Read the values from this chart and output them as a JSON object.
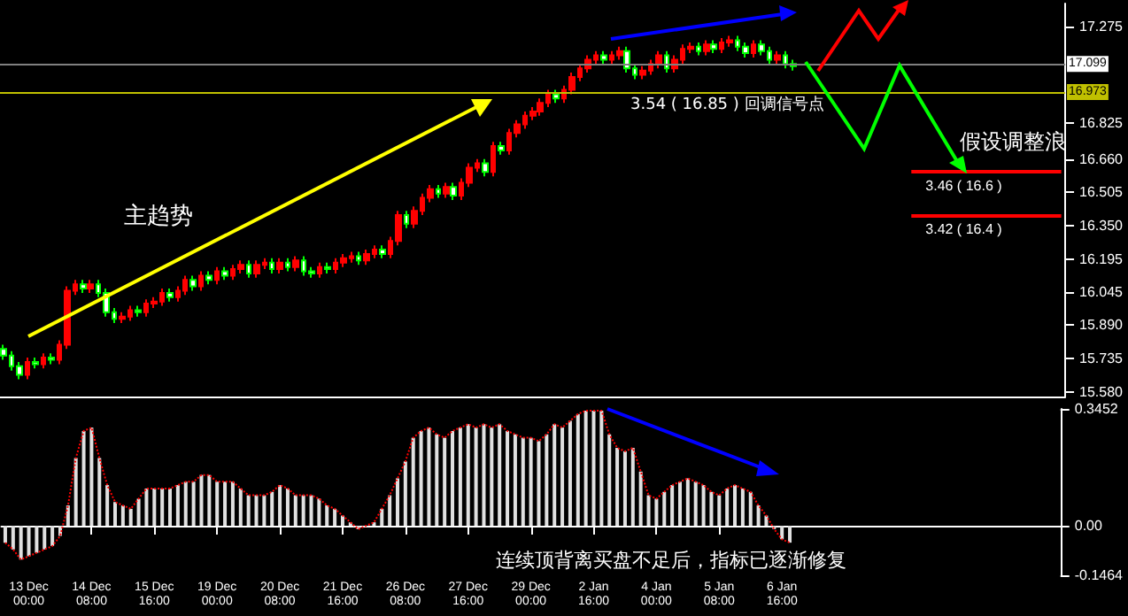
{
  "chart_data": [
    {
      "type": "candlestick",
      "tick_labels": "y",
      "categories": [
        null,
        null,
        null,
        null,
        null,
        null,
        null,
        null,
        null,
        null,
        null,
        null,
        null,
        null,
        null,
        null,
        null,
        null,
        null,
        null,
        null,
        null,
        null,
        null,
        null,
        null,
        null,
        null,
        null,
        null,
        null,
        null,
        null,
        null,
        null,
        null,
        null,
        null,
        null,
        null,
        null,
        null,
        null,
        null,
        null,
        null,
        null,
        null,
        null,
        null,
        null,
        null,
        null,
        null,
        null,
        null,
        null,
        null,
        null,
        null,
        null,
        null,
        null,
        null,
        null,
        null,
        null,
        null,
        null,
        null,
        null,
        null,
        null,
        null,
        null,
        null,
        null,
        null,
        null,
        null,
        null,
        null,
        null,
        null,
        null,
        null,
        null,
        null,
        null,
        null,
        null,
        null,
        null,
        null,
        null,
        null,
        null,
        null,
        null,
        null,
        null,
        null,
        null,
        null,
        null,
        null,
        null,
        null,
        null,
        null,
        null,
        null,
        null,
        null,
        null,
        null,
        null,
        null,
        null,
        null,
        null,
        null,
        null,
        null,
        null,
        null,
        null,
        null,
        null,
        null,
        null,
        null,
        null,
        null,
        null
      ],
      "ohlc": [
        [
          15.78,
          15.8,
          15.73,
          15.75
        ],
        [
          15.75,
          15.77,
          15.68,
          15.7
        ],
        [
          15.7,
          15.72,
          15.64,
          15.66
        ],
        [
          15.66,
          15.74,
          15.64,
          15.72
        ],
        [
          15.72,
          15.74,
          15.69,
          15.71
        ],
        [
          15.71,
          15.76,
          15.69,
          15.74
        ],
        [
          15.74,
          15.76,
          15.71,
          15.73
        ],
        [
          15.73,
          15.82,
          15.71,
          15.8
        ],
        [
          15.8,
          16.07,
          15.78,
          16.05
        ],
        [
          16.05,
          16.1,
          16.03,
          16.08
        ],
        [
          16.08,
          16.1,
          16.04,
          16.06
        ],
        [
          16.06,
          16.1,
          16.04,
          16.08
        ],
        [
          16.08,
          16.1,
          16.02,
          16.04
        ],
        [
          16.04,
          16.06,
          15.93,
          15.95
        ],
        [
          15.95,
          15.97,
          15.9,
          15.92
        ],
        [
          15.92,
          15.95,
          15.9,
          15.93
        ],
        [
          15.93,
          15.98,
          15.91,
          15.96
        ],
        [
          15.96,
          15.98,
          15.93,
          15.95
        ],
        [
          15.95,
          16.01,
          15.93,
          15.99
        ],
        [
          15.99,
          16.02,
          15.97,
          16.0
        ],
        [
          16.0,
          16.06,
          15.98,
          16.04
        ],
        [
          16.04,
          16.06,
          16.0,
          16.02
        ],
        [
          16.02,
          16.07,
          16.0,
          16.05
        ],
        [
          16.05,
          16.12,
          16.03,
          16.1
        ],
        [
          16.1,
          16.12,
          16.05,
          16.07
        ],
        [
          16.07,
          16.14,
          16.05,
          16.12
        ],
        [
          16.12,
          16.14,
          16.08,
          16.1
        ],
        [
          16.1,
          16.16,
          16.08,
          16.14
        ],
        [
          16.14,
          16.16,
          16.1,
          16.12
        ],
        [
          16.12,
          16.17,
          16.1,
          16.15
        ],
        [
          16.15,
          16.19,
          16.13,
          16.17
        ],
        [
          16.17,
          16.19,
          16.11,
          16.13
        ],
        [
          16.13,
          16.19,
          16.11,
          16.17
        ],
        [
          16.17,
          16.2,
          16.15,
          16.18
        ],
        [
          16.18,
          16.2,
          16.13,
          16.15
        ],
        [
          16.15,
          16.2,
          16.13,
          16.18
        ],
        [
          16.18,
          16.2,
          16.14,
          16.16
        ],
        [
          16.16,
          16.21,
          16.14,
          16.19
        ],
        [
          16.19,
          16.21,
          16.12,
          16.14
        ],
        [
          16.14,
          16.16,
          16.11,
          16.13
        ],
        [
          16.13,
          16.18,
          16.11,
          16.16
        ],
        [
          16.16,
          16.18,
          16.13,
          16.15
        ],
        [
          16.15,
          16.2,
          16.13,
          16.18
        ],
        [
          16.18,
          16.22,
          16.16,
          16.2
        ],
        [
          16.2,
          16.23,
          16.18,
          16.21
        ],
        [
          16.21,
          16.23,
          16.17,
          16.19
        ],
        [
          16.19,
          16.24,
          16.17,
          16.22
        ],
        [
          16.22,
          16.26,
          16.2,
          16.24
        ],
        [
          16.24,
          16.26,
          16.2,
          16.22
        ],
        [
          16.22,
          16.3,
          16.2,
          16.28
        ],
        [
          16.28,
          16.42,
          16.26,
          16.4
        ],
        [
          16.4,
          16.42,
          16.34,
          16.36
        ],
        [
          16.36,
          16.44,
          16.34,
          16.42
        ],
        [
          16.42,
          16.5,
          16.4,
          16.48
        ],
        [
          16.48,
          16.54,
          16.46,
          16.52
        ],
        [
          16.52,
          16.54,
          16.48,
          16.5
        ],
        [
          16.5,
          16.55,
          16.48,
          16.53
        ],
        [
          16.53,
          16.55,
          16.47,
          16.49
        ],
        [
          16.49,
          16.57,
          16.47,
          16.55
        ],
        [
          16.55,
          16.64,
          16.53,
          16.62
        ],
        [
          16.62,
          16.66,
          16.6,
          16.64
        ],
        [
          16.64,
          16.66,
          16.58,
          16.6
        ],
        [
          16.6,
          16.74,
          16.58,
          16.72
        ],
        [
          16.72,
          16.74,
          16.68,
          16.7
        ],
        [
          16.7,
          16.8,
          16.68,
          16.78
        ],
        [
          16.78,
          16.84,
          16.76,
          16.82
        ],
        [
          16.82,
          16.88,
          16.8,
          16.86
        ],
        [
          16.86,
          16.9,
          16.84,
          16.88
        ],
        [
          16.88,
          16.94,
          16.86,
          16.92
        ],
        [
          16.92,
          16.98,
          16.9,
          16.96
        ],
        [
          16.96,
          16.98,
          16.92,
          16.94
        ],
        [
          16.94,
          17.0,
          16.92,
          16.98
        ],
        [
          16.98,
          17.06,
          16.96,
          17.04
        ],
        [
          17.04,
          17.1,
          17.02,
          17.08
        ],
        [
          17.08,
          17.14,
          17.06,
          17.12
        ],
        [
          17.12,
          17.16,
          17.1,
          17.14
        ],
        [
          17.14,
          17.16,
          17.1,
          17.12
        ],
        [
          17.12,
          17.16,
          17.1,
          17.14
        ],
        [
          17.14,
          17.18,
          17.12,
          17.16
        ],
        [
          17.16,
          17.18,
          17.06,
          17.08
        ],
        [
          17.08,
          17.1,
          17.03,
          17.05
        ],
        [
          17.05,
          17.09,
          17.03,
          17.07
        ],
        [
          17.07,
          17.12,
          17.05,
          17.1
        ],
        [
          17.1,
          17.16,
          17.08,
          17.14
        ],
        [
          17.14,
          17.16,
          17.06,
          17.08
        ],
        [
          17.08,
          17.14,
          17.06,
          17.12
        ],
        [
          17.12,
          17.19,
          17.1,
          17.17
        ],
        [
          17.17,
          17.2,
          17.15,
          17.18
        ],
        [
          17.18,
          17.2,
          17.14,
          17.16
        ],
        [
          17.16,
          17.21,
          17.14,
          17.19
        ],
        [
          17.19,
          17.21,
          17.15,
          17.17
        ],
        [
          17.17,
          17.22,
          17.15,
          17.2
        ],
        [
          17.2,
          17.23,
          17.18,
          17.21
        ],
        [
          17.21,
          17.23,
          17.16,
          17.18
        ],
        [
          17.18,
          17.2,
          17.13,
          17.15
        ],
        [
          17.15,
          17.21,
          17.13,
          17.19
        ],
        [
          17.19,
          17.21,
          17.14,
          17.16
        ],
        [
          17.16,
          17.18,
          17.1,
          17.12
        ],
        [
          17.12,
          17.16,
          17.1,
          17.14
        ],
        [
          17.14,
          17.16,
          17.08,
          17.1
        ],
        [
          17.1,
          17.12,
          17.07,
          17.09
        ],
        null,
        null,
        null,
        null,
        null,
        null,
        null,
        null,
        null,
        null,
        null,
        null,
        null,
        null,
        null,
        null,
        null,
        null,
        null,
        null,
        null,
        null,
        null,
        null,
        null,
        null,
        null,
        null,
        null,
        null,
        null,
        null,
        null,
        null
      ],
      "ylim": [
        15.56,
        17.38
      ],
      "yticks": [
        {
          "value": 15.58,
          "label": "15.580"
        },
        {
          "value": 15.735,
          "label": "15.735"
        },
        {
          "value": 15.89,
          "label": "15.890"
        },
        {
          "value": 16.045,
          "label": "16.045"
        },
        {
          "value": 16.195,
          "label": "16.195"
        },
        {
          "value": 16.35,
          "label": "16.350"
        },
        {
          "value": 16.505,
          "label": "16.505"
        },
        {
          "value": 16.66,
          "label": "16.660"
        },
        {
          "value": 16.825,
          "label": "16.825"
        },
        {
          "value": 17.275,
          "label": "17.275"
        }
      ],
      "ref_lines": [
        {
          "axis": "y",
          "value": 17.099,
          "label": "17.099",
          "color": "#808080"
        },
        {
          "axis": "y",
          "value": 16.973,
          "label": "16.973",
          "color": "#c0c000"
        },
        {
          "axis": "y",
          "value": 16.6,
          "label": "3.46 ( 16.6 )",
          "color": "#ff0000"
        },
        {
          "axis": "y",
          "value": 16.4,
          "label": "3.42 ( 16.4 )",
          "color": "#ff0000"
        }
      ],
      "annotations": [
        "主趋势",
        "3.54 ( 16.85 ) 回调信号点",
        "假设调整浪"
      ]
    },
    {
      "type": "bar",
      "line_style": "dotted",
      "categories": [
        null,
        null,
        null,
        "13 Dec 00:00",
        null,
        null,
        null,
        null,
        null,
        null,
        null,
        "14 Dec 08:00",
        null,
        null,
        null,
        null,
        null,
        null,
        null,
        "15 Dec 16:00",
        null,
        null,
        null,
        null,
        null,
        null,
        null,
        "19 Dec 00:00",
        null,
        null,
        null,
        null,
        null,
        null,
        null,
        "20 Dec 08:00",
        null,
        null,
        null,
        null,
        null,
        null,
        null,
        "21 Dec 16:00",
        null,
        null,
        null,
        null,
        null,
        null,
        null,
        "26 Dec 08:00",
        null,
        null,
        null,
        null,
        null,
        null,
        null,
        "27 Dec 16:00",
        null,
        null,
        null,
        null,
        null,
        null,
        null,
        "29 Dec 00:00",
        null,
        null,
        null,
        null,
        null,
        null,
        null,
        "2 Jan 16:00",
        null,
        null,
        null,
        null,
        null,
        null,
        null,
        "4 Jan 00:00",
        null,
        null,
        null,
        null,
        null,
        null,
        null,
        "5 Jan 08:00",
        null,
        null,
        null,
        null,
        null,
        null,
        null,
        "6 Jan 16:00",
        null,
        null,
        null,
        null,
        null,
        null,
        null,
        null,
        null,
        null,
        null,
        null,
        null,
        null,
        null,
        null,
        null,
        null,
        null,
        null,
        null,
        null,
        null,
        null,
        null,
        null,
        null,
        null,
        null,
        null,
        null,
        null,
        null,
        null,
        null
      ],
      "series": [
        {
          "type": "bar",
          "color": "#e0e0e0",
          "values": [
            -0.05,
            -0.07,
            -0.1,
            -0.09,
            -0.08,
            -0.07,
            -0.06,
            -0.03,
            0.06,
            0.2,
            0.28,
            0.29,
            0.2,
            0.12,
            0.07,
            0.06,
            0.05,
            0.08,
            0.11,
            0.11,
            0.11,
            0.11,
            0.12,
            0.13,
            0.13,
            0.15,
            0.15,
            0.13,
            0.13,
            0.13,
            0.11,
            0.09,
            0.09,
            0.09,
            0.1,
            0.12,
            0.11,
            0.09,
            0.09,
            0.09,
            0.08,
            0.06,
            0.05,
            0.03,
            0.01,
            -0.01,
            0.0,
            0.01,
            0.05,
            0.09,
            0.14,
            0.19,
            0.26,
            0.28,
            0.29,
            0.27,
            0.26,
            0.28,
            0.29,
            0.3,
            0.29,
            0.3,
            0.29,
            0.3,
            0.28,
            0.27,
            0.26,
            0.26,
            0.25,
            0.27,
            0.3,
            0.29,
            0.31,
            0.33,
            0.34,
            0.34,
            0.34,
            0.27,
            0.23,
            0.22,
            0.23,
            0.16,
            0.09,
            0.08,
            0.1,
            0.12,
            0.13,
            0.14,
            0.13,
            0.12,
            0.1,
            0.09,
            0.11,
            0.12,
            0.11,
            0.1,
            0.06,
            0.03,
            -0.01,
            -0.04,
            -0.05,
            null,
            null,
            null,
            null,
            null,
            null,
            null,
            null,
            null,
            null,
            null,
            null,
            null,
            null,
            null,
            null,
            null,
            null,
            null,
            null,
            null,
            null,
            null,
            null,
            null,
            null,
            null,
            null,
            null,
            null,
            null,
            null,
            null,
            null
          ]
        },
        {
          "type": "line",
          "color": "#ff0000",
          "values": [
            -0.05,
            -0.07,
            -0.1,
            -0.09,
            -0.08,
            -0.07,
            -0.06,
            -0.03,
            0.06,
            0.2,
            0.28,
            0.29,
            0.2,
            0.12,
            0.07,
            0.06,
            0.05,
            0.08,
            0.11,
            0.11,
            0.11,
            0.11,
            0.12,
            0.13,
            0.13,
            0.15,
            0.15,
            0.13,
            0.13,
            0.13,
            0.11,
            0.09,
            0.09,
            0.09,
            0.1,
            0.12,
            0.11,
            0.09,
            0.09,
            0.09,
            0.08,
            0.06,
            0.05,
            0.03,
            0.01,
            -0.01,
            0.0,
            0.01,
            0.05,
            0.09,
            0.14,
            0.19,
            0.26,
            0.28,
            0.29,
            0.27,
            0.26,
            0.28,
            0.29,
            0.3,
            0.29,
            0.3,
            0.29,
            0.3,
            0.28,
            0.27,
            0.26,
            0.26,
            0.25,
            0.27,
            0.3,
            0.29,
            0.31,
            0.33,
            0.34,
            0.34,
            0.34,
            0.27,
            0.23,
            0.22,
            0.23,
            0.16,
            0.09,
            0.08,
            0.1,
            0.12,
            0.13,
            0.14,
            0.13,
            0.12,
            0.1,
            0.09,
            0.11,
            0.12,
            0.11,
            0.1,
            0.06,
            0.03,
            -0.01,
            -0.04,
            -0.05,
            null,
            null,
            null,
            null,
            null,
            null,
            null,
            null,
            null,
            null,
            null,
            null,
            null,
            null,
            null,
            null,
            null,
            null,
            null,
            null,
            null,
            null,
            null,
            null,
            null,
            null,
            null,
            null,
            null,
            null,
            null,
            null,
            null,
            null
          ]
        }
      ],
      "ylim": [
        -0.1464,
        0.3452
      ],
      "yticks": [
        -0.1464,
        {
          "value": 0,
          "label": "0.00"
        },
        0.3452
      ],
      "annotations": [
        "连续顶背离买盘不足后，指标已逐渐修复"
      ]
    }
  ]
}
